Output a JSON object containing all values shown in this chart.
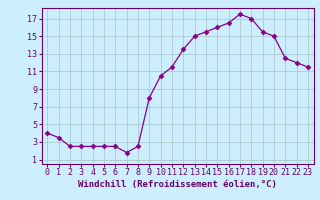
{
  "x": [
    0,
    1,
    2,
    3,
    4,
    5,
    6,
    7,
    8,
    9,
    10,
    11,
    12,
    13,
    14,
    15,
    16,
    17,
    18,
    19,
    20,
    21,
    22,
    23
  ],
  "y": [
    4.0,
    3.5,
    2.5,
    2.5,
    2.5,
    2.5,
    2.5,
    1.8,
    2.5,
    8.0,
    10.5,
    11.5,
    13.5,
    15.0,
    15.5,
    16.0,
    16.5,
    17.5,
    17.0,
    15.5,
    15.0,
    12.5,
    12.0,
    11.5
  ],
  "line_color": "#880088",
  "marker": "D",
  "marker_size": 2.5,
  "bg_color": "#cceeff",
  "grid_color": "#aacccc",
  "xlabel": "Windchill (Refroidissement éolien,°C)",
  "xlim": [
    -0.5,
    23.5
  ],
  "ylim": [
    0.5,
    18.2
  ],
  "yticks": [
    1,
    3,
    5,
    7,
    9,
    11,
    13,
    15,
    17
  ],
  "xticks": [
    0,
    1,
    2,
    3,
    4,
    5,
    6,
    7,
    8,
    9,
    10,
    11,
    12,
    13,
    14,
    15,
    16,
    17,
    18,
    19,
    20,
    21,
    22,
    23
  ],
  "tick_color": "#660066",
  "label_fontsize": 6.5,
  "tick_fontsize": 6.0,
  "spine_color": "#660066"
}
